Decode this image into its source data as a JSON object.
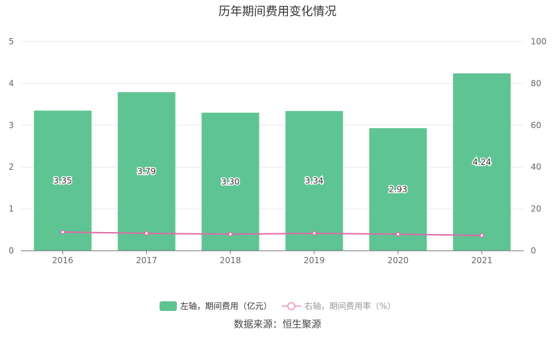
{
  "chart_data": {
    "type": "bar",
    "title": "历年期间费用变化情况",
    "categories": [
      "2016",
      "2017",
      "2018",
      "2019",
      "2020",
      "2021"
    ],
    "series": [
      {
        "name": "左轴，期间费用（亿元）",
        "type": "bar",
        "axis": "left",
        "values": [
          3.35,
          3.79,
          3.3,
          3.34,
          2.93,
          4.24
        ],
        "labels": [
          "3.35",
          "3.79",
          "3.30",
          "3.34",
          "2.93",
          "4.24"
        ],
        "color": "#5fc493"
      },
      {
        "name": "右轴，期间费用率（%）",
        "type": "line",
        "axis": "right",
        "values": [
          8.9,
          8.3,
          7.9,
          8.3,
          7.9,
          7.3
        ],
        "color": "#e06aa8"
      }
    ],
    "left_axis": {
      "ylim": [
        0,
        5
      ],
      "ticks": [
        "0",
        "1",
        "2",
        "3",
        "4",
        "5"
      ]
    },
    "right_axis": {
      "ylim": [
        0,
        100
      ],
      "ticks": [
        "0",
        "20",
        "40",
        "60",
        "80",
        "100"
      ]
    },
    "grid": true,
    "legend": "bottom"
  },
  "source": "数据来源：恒生聚源"
}
